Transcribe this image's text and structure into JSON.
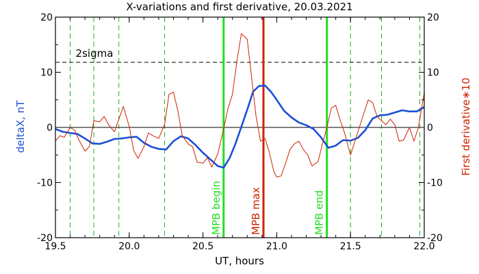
{
  "chart_data": {
    "type": "line",
    "title": "X-variations and first derivative, 20.03.2021",
    "xlabel": "UT, hours",
    "ylabel_left": "deltaX, nT",
    "ylabel_right": "First derivative∗10",
    "xlim": [
      19.5,
      22.0
    ],
    "ylim": [
      -20,
      20
    ],
    "x_ticks": [
      "19.5",
      "20.0",
      "20.5",
      "21.0",
      "21.5",
      "22.0"
    ],
    "y_ticks_left": [
      "20",
      "10",
      "0",
      "-10",
      "-20"
    ],
    "y_ticks_right": [
      "20",
      "10",
      "0",
      "-10",
      "-20"
    ],
    "sigma_level": 11.8,
    "sigma_label": "2sigma",
    "zero_line": true,
    "colors": {
      "deltaX": "#1a4fd6",
      "derivative": "#cc2200",
      "mpb_boundary": "#22dd22",
      "mpb_max": "#cc2200",
      "dashed_markers": "#22aa22",
      "left_label": "#1a4fd6",
      "right_label": "#cc2200"
    },
    "dashed_markers_x": [
      19.6,
      19.76,
      19.93,
      20.24,
      21.5,
      21.71,
      21.97
    ],
    "vertical_lines": [
      {
        "x": 20.64,
        "label": "MPB begin",
        "kind": "mpb_boundary"
      },
      {
        "x": 20.91,
        "label": "MPB max",
        "kind": "mpb_max"
      },
      {
        "x": 21.34,
        "label": "MPB end",
        "kind": "mpb_boundary"
      }
    ],
    "series": [
      {
        "id": "deltaX",
        "axis": "left",
        "x": [
          19.5,
          19.55,
          19.6,
          19.65,
          19.7,
          19.75,
          19.8,
          19.85,
          19.9,
          19.95,
          20.0,
          20.05,
          20.1,
          20.15,
          20.2,
          20.25,
          20.3,
          20.35,
          20.4,
          20.45,
          20.5,
          20.55,
          20.6,
          20.64,
          20.68,
          20.72,
          20.76,
          20.8,
          20.84,
          20.88,
          20.92,
          20.96,
          21.0,
          21.05,
          21.1,
          21.15,
          21.2,
          21.25,
          21.3,
          21.35,
          21.4,
          21.45,
          21.5,
          21.55,
          21.6,
          21.65,
          21.7,
          21.75,
          21.8,
          21.85,
          21.9,
          21.95,
          22.0
        ],
        "y": [
          -0.3,
          -0.8,
          -1.0,
          -1.2,
          -2.0,
          -2.9,
          -3.0,
          -2.6,
          -2.1,
          -2.0,
          -1.8,
          -1.7,
          -2.8,
          -3.5,
          -3.9,
          -4.0,
          -2.5,
          -1.6,
          -2.0,
          -3.2,
          -4.6,
          -5.8,
          -7.0,
          -7.3,
          -5.6,
          -3.0,
          0.1,
          3.2,
          6.5,
          7.5,
          7.6,
          6.5,
          5.0,
          3.0,
          1.8,
          0.9,
          0.4,
          -0.3,
          -1.8,
          -3.7,
          -3.3,
          -2.3,
          -2.4,
          -1.9,
          -0.5,
          1.6,
          2.2,
          2.3,
          2.7,
          3.1,
          2.9,
          2.9,
          3.7
        ]
      },
      {
        "id": "derivative",
        "axis": "right",
        "x": [
          19.5,
          19.53,
          19.56,
          19.6,
          19.63,
          19.66,
          19.7,
          19.73,
          19.76,
          19.8,
          19.83,
          19.86,
          19.9,
          19.93,
          19.96,
          20.0,
          20.03,
          20.06,
          20.1,
          20.13,
          20.16,
          20.2,
          20.24,
          20.27,
          20.3,
          20.33,
          20.36,
          20.4,
          20.43,
          20.46,
          20.5,
          20.53,
          20.56,
          20.6,
          20.64,
          20.67,
          20.7,
          20.73,
          20.76,
          20.8,
          20.83,
          20.86,
          20.89,
          20.92,
          20.95,
          20.98,
          21.0,
          21.03,
          21.06,
          21.09,
          21.12,
          21.15,
          21.18,
          21.21,
          21.24,
          21.28,
          21.31,
          21.34,
          21.37,
          21.4,
          21.43,
          21.46,
          21.5,
          21.53,
          21.56,
          21.59,
          21.62,
          21.65,
          21.68,
          21.71,
          21.74,
          21.77,
          21.8,
          21.83,
          21.86,
          21.9,
          21.93,
          21.96,
          22.0
        ],
        "y": [
          -2.5,
          -1.5,
          -1.8,
          0.0,
          -0.5,
          -2.3,
          -4.3,
          -3.5,
          1.2,
          1.0,
          2.0,
          0.5,
          -0.8,
          1.5,
          3.8,
          0.2,
          -4.2,
          -5.6,
          -3.5,
          -1.0,
          -1.5,
          -2.0,
          0.5,
          6.0,
          6.4,
          3.0,
          -1.5,
          -3.0,
          -3.5,
          -6.3,
          -6.5,
          -5.5,
          -7.2,
          -4.8,
          -0.3,
          3.5,
          6.0,
          12.0,
          17.0,
          16.0,
          9.0,
          2.0,
          -2.5,
          -2.0,
          -4.5,
          -8.0,
          -9.0,
          -8.8,
          -6.5,
          -4.0,
          -3.0,
          -2.5,
          -4.0,
          -5.0,
          -7.0,
          -6.2,
          -3.0,
          0.0,
          3.5,
          4.0,
          1.3,
          -1.0,
          -5.0,
          -2.5,
          0.0,
          2.5,
          5.0,
          4.5,
          2.0,
          1.2,
          0.5,
          1.5,
          0.5,
          -2.5,
          -2.3,
          0.0,
          -2.5,
          0.0,
          6.3
        ]
      }
    ]
  }
}
